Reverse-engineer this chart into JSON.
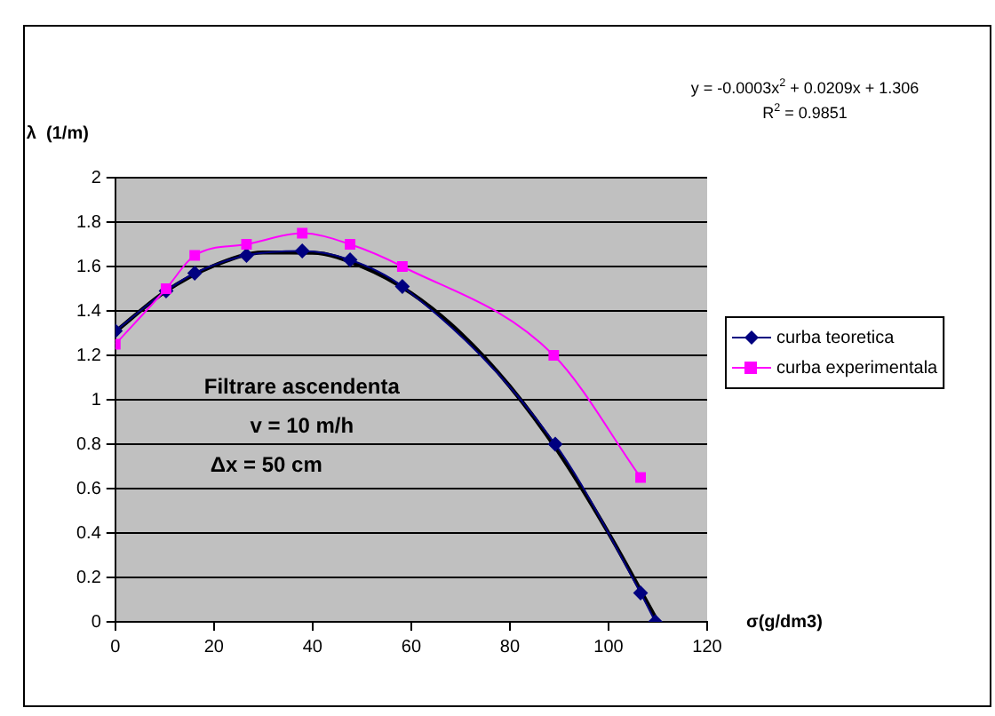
{
  "chart_data": {
    "type": "line",
    "ylabel": "λ  (1/m)",
    "xlabel": "σ(g/dm3)",
    "annotations": [
      "y = -0.0003x$^{2}$ + 0.0209x + 1.306",
      "R$^{2}$ = 0.9851",
      "Filtrare ascendenta",
      "v = 10 m/h",
      "Δx = 50 cm"
    ],
    "xlim": [
      0,
      120
    ],
    "xticks": [
      0,
      20,
      40,
      60,
      80,
      100,
      120
    ],
    "ylim": [
      0,
      2
    ],
    "yticks": [
      0,
      0.2,
      0.4,
      0.6,
      0.8,
      1,
      1.2,
      1.4,
      1.6,
      1.8,
      2
    ],
    "grid": "y",
    "legend": "right",
    "series": [
      {
        "name": "curba teoretica",
        "color": "#000080",
        "marker": "diamond",
        "x": [
          0,
          10.3,
          16.1,
          26.6,
          37.9,
          47.6,
          58.2,
          89.2,
          106.5,
          109.5
        ],
        "values": [
          1.31,
          1.49,
          1.57,
          1.65,
          1.67,
          1.63,
          1.51,
          0.8,
          0.13,
          0
        ]
      },
      {
        "name": "curba experimentala",
        "color": "#ff00ff",
        "marker": "square",
        "x": [
          0,
          10.3,
          16.1,
          26.6,
          37.9,
          47.6,
          58.2,
          88.9,
          106.5
        ],
        "values": [
          1.25,
          1.5,
          1.65,
          1.7,
          1.75,
          1.7,
          1.6,
          1.2,
          0.65
        ]
      },
      {
        "type": "line",
        "color": "#000000",
        "marker": "none",
        "x": [
          0,
          10,
          20,
          30,
          40,
          50,
          60,
          70,
          80,
          90,
          100,
          110
        ],
        "values": [
          1.306,
          1.485,
          1.604,
          1.663,
          1.662,
          1.6,
          1.48,
          1.3,
          1.06,
          0.76,
          0.4,
          0
        ]
      }
    ]
  }
}
